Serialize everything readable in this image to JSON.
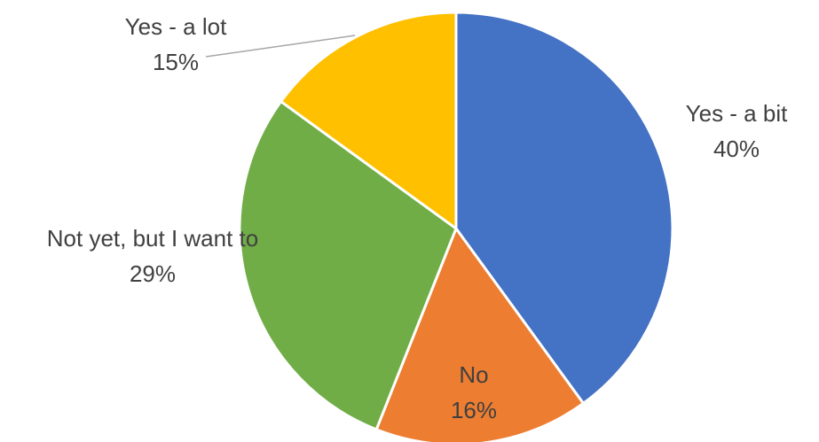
{
  "chart_data": {
    "type": "pie",
    "title": "",
    "start_angle_deg": 0,
    "direction": "clockwise",
    "legend": "none",
    "slices": [
      {
        "label": "Yes - a bit",
        "value": 40,
        "value_label": "40%",
        "color": "#4472C4"
      },
      {
        "label": "No",
        "value": 16,
        "value_label": "16%",
        "color": "#ED7D31"
      },
      {
        "label": "Not yet, but I want to",
        "value": 29,
        "value_label": "29%",
        "color": "#70AD47"
      },
      {
        "label": "Yes - a lot",
        "value": 15,
        "value_label": "15%",
        "color": "#FFC000"
      }
    ]
  }
}
